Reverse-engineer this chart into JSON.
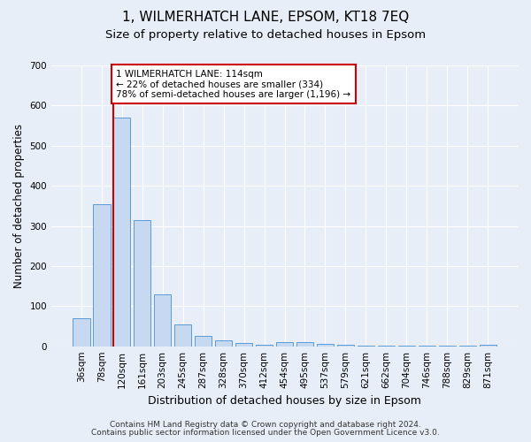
{
  "title": "1, WILMERHATCH LANE, EPSOM, KT18 7EQ",
  "subtitle": "Size of property relative to detached houses in Epsom",
  "xlabel": "Distribution of detached houses by size in Epsom",
  "ylabel": "Number of detached properties",
  "categories": [
    "36sqm",
    "78sqm",
    "120sqm",
    "161sqm",
    "203sqm",
    "245sqm",
    "287sqm",
    "328sqm",
    "370sqm",
    "412sqm",
    "454sqm",
    "495sqm",
    "537sqm",
    "579sqm",
    "621sqm",
    "662sqm",
    "704sqm",
    "746sqm",
    "788sqm",
    "829sqm",
    "871sqm"
  ],
  "values": [
    70,
    355,
    570,
    315,
    130,
    55,
    25,
    15,
    8,
    4,
    10,
    10,
    5,
    3,
    2,
    2,
    2,
    2,
    1,
    1,
    4
  ],
  "bar_color": "#c6d9f0",
  "bar_edge_color": "#5b9bd5",
  "bg_color": "#e8eef7",
  "grid_color": "#ffffff",
  "vline_x_index": 2,
  "vline_color": "#cc0000",
  "annotation_text": "1 WILMERHATCH LANE: 114sqm\n← 22% of detached houses are smaller (334)\n78% of semi-detached houses are larger (1,196) →",
  "annotation_box_color": "#ffffff",
  "annotation_box_edge": "#cc0000",
  "ylim": [
    0,
    700
  ],
  "yticks": [
    0,
    100,
    200,
    300,
    400,
    500,
    600,
    700
  ],
  "footer1": "Contains HM Land Registry data © Crown copyright and database right 2024.",
  "footer2": "Contains public sector information licensed under the Open Government Licence v3.0.",
  "title_fontsize": 11,
  "subtitle_fontsize": 9.5,
  "xlabel_fontsize": 9,
  "ylabel_fontsize": 8.5,
  "tick_fontsize": 7.5,
  "annotation_fontsize": 7.5,
  "footer_fontsize": 6.5
}
